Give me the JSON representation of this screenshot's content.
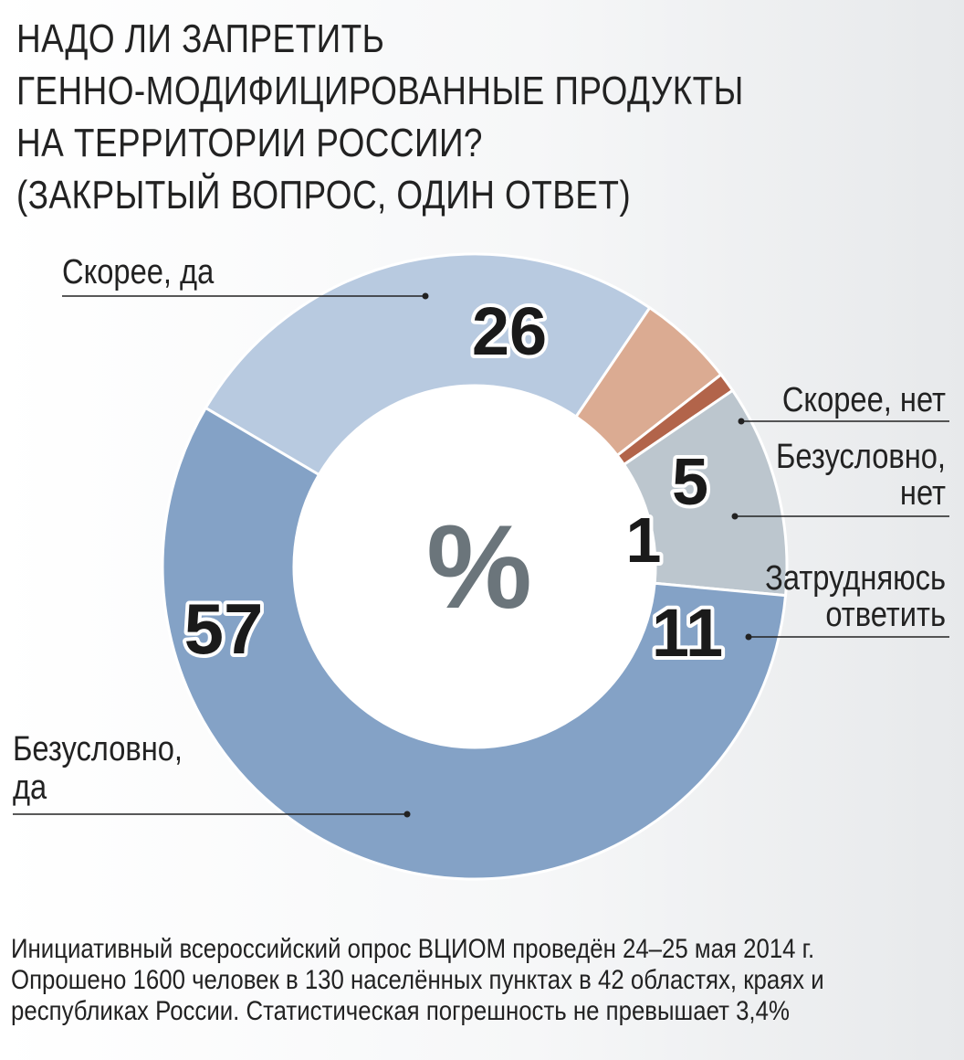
{
  "title_lines": [
    "НАДО ЛИ ЗАПРЕТИТЬ",
    "ГЕННО-МОДИФИЦИРОВАННЫЕ ПРОДУКТЫ",
    "НА ТЕРРИТОРИИ РОССИИ?",
    "(ЗАКРЫТЫЙ ВОПРОС, ОДИН ОТВЕТ)"
  ],
  "center_symbol": "%",
  "footnote_lines": [
    "Инициативный всероссийский опрос ВЦИОМ проведён 24–25 мая 2014 г.",
    "Опрошено 1600 человек в 130 населённых пунктах в 42 областях, краях и",
    "республиках России. Статистическая погрешность не превышает 3,4%"
  ],
  "chart_data": {
    "type": "pie",
    "variant": "donut",
    "unit": "%",
    "categories": [
      "Скорее, да",
      "Скорее, нет",
      "Безусловно, нет",
      "Затрудняюсь ответить",
      "Безусловно, да"
    ],
    "label_lines": [
      [
        "Скорее, да"
      ],
      [
        "Скорее, нет"
      ],
      [
        "Безусловно,",
        "нет"
      ],
      [
        "Затрудняюсь",
        "ответить"
      ],
      [
        "Безусловно,",
        "да"
      ]
    ],
    "values": [
      26,
      5,
      1,
      11,
      57
    ],
    "value_labels": [
      "26",
      "5",
      "1",
      "11",
      "57"
    ],
    "colors": [
      "#b8cae0",
      "#dbab92",
      "#b2644a",
      "#bcc6ce",
      "#84a2c6"
    ]
  }
}
